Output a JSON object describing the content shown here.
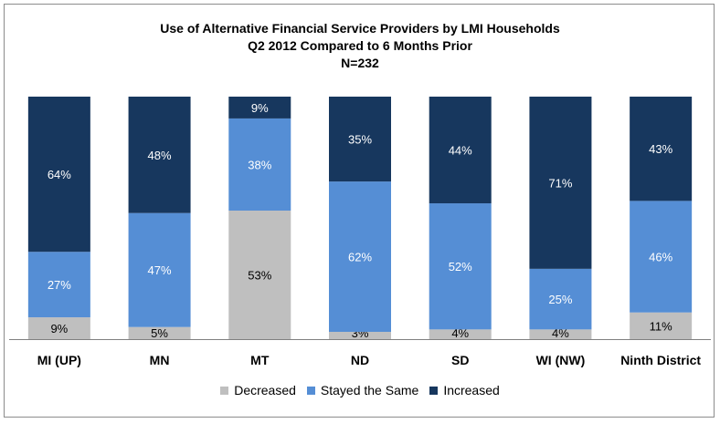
{
  "chart_data": {
    "type": "bar",
    "stacked": true,
    "title": [
      "Use of Alternative Financial Service Providers by LMI Households",
      "Q2 2012 Compared to 6 Months Prior",
      "N=232"
    ],
    "categories": [
      "MI (UP)",
      "MN",
      "MT",
      "ND",
      "SD",
      "WI (NW)",
      "Ninth District"
    ],
    "series": [
      {
        "name": "Decreased",
        "color": "#bfbfbf",
        "values": [
          9,
          5,
          53,
          3,
          4,
          4,
          11
        ],
        "labels": [
          "9%",
          "5%",
          "53%",
          "3%",
          "4%",
          "4%",
          "11%"
        ]
      },
      {
        "name": "Stayed the Same",
        "color": "#558ed5",
        "values": [
          27,
          47,
          38,
          62,
          52,
          25,
          46
        ],
        "labels": [
          "27%",
          "47%",
          "38%",
          "62%",
          "52%",
          "25%",
          "46%"
        ]
      },
      {
        "name": "Increased",
        "color": "#17375e",
        "values": [
          64,
          48,
          9,
          35,
          44,
          71,
          43
        ],
        "labels": [
          "64%",
          "48%",
          "9%",
          "35%",
          "44%",
          "71%",
          "43%"
        ]
      }
    ],
    "ylim": [
      0,
      100
    ],
    "grid": false,
    "legend_position": "bottom"
  }
}
